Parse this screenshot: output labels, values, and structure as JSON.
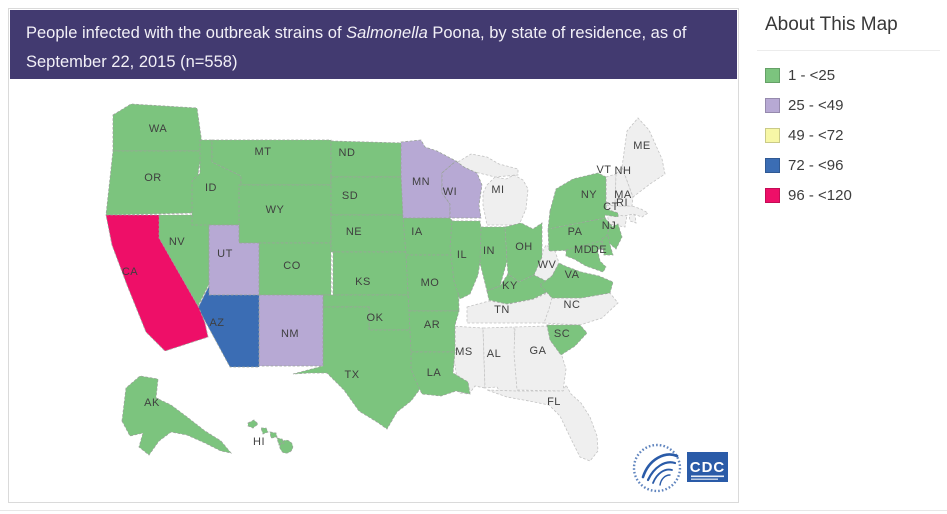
{
  "header": {
    "title_prefix": "People infected with the outbreak strains of ",
    "title_italic": "Salmonella",
    "title_suffix": " Poona, by state of residence, as of September 22, 2015 (n=558)",
    "background": "#423a70"
  },
  "about_panel": {
    "heading": "About This Map"
  },
  "legend": {
    "items": [
      {
        "key": "cat1",
        "label": "1 - <25",
        "color": "#7cc47e"
      },
      {
        "key": "cat2",
        "label": "25 - <49",
        "color": "#b7a9d4"
      },
      {
        "key": "cat3",
        "label": "49 - <72",
        "color": "#f7f7a6"
      },
      {
        "key": "cat4",
        "label": "72 - <96",
        "color": "#3b6db4"
      },
      {
        "key": "cat5",
        "label": "96 - <120",
        "color": "#ee0f68"
      }
    ],
    "no_case_color": "#efefef"
  },
  "map": {
    "states": [
      {
        "id": "WA",
        "label": "WA",
        "cat": "cat1"
      },
      {
        "id": "OR",
        "label": "OR",
        "cat": "cat1"
      },
      {
        "id": "CA",
        "label": "CA",
        "cat": "cat5"
      },
      {
        "id": "NV",
        "label": "NV",
        "cat": "cat1"
      },
      {
        "id": "ID",
        "label": "ID",
        "cat": "cat1"
      },
      {
        "id": "MT",
        "label": "MT",
        "cat": "cat1"
      },
      {
        "id": "WY",
        "label": "WY",
        "cat": "cat1"
      },
      {
        "id": "UT",
        "label": "UT",
        "cat": "cat2"
      },
      {
        "id": "CO",
        "label": "CO",
        "cat": "cat1"
      },
      {
        "id": "AZ",
        "label": "AZ",
        "cat": "cat4"
      },
      {
        "id": "NM",
        "label": "NM",
        "cat": "cat2"
      },
      {
        "id": "ND",
        "label": "ND",
        "cat": "cat1"
      },
      {
        "id": "SD",
        "label": "SD",
        "cat": "cat1"
      },
      {
        "id": "NE",
        "label": "NE",
        "cat": "cat1"
      },
      {
        "id": "KS",
        "label": "KS",
        "cat": "cat1"
      },
      {
        "id": "OK",
        "label": "OK",
        "cat": "cat1"
      },
      {
        "id": "TX",
        "label": "TX",
        "cat": "cat1"
      },
      {
        "id": "MN",
        "label": "MN",
        "cat": "cat2"
      },
      {
        "id": "IA",
        "label": "IA",
        "cat": "cat1"
      },
      {
        "id": "MO",
        "label": "MO",
        "cat": "cat1"
      },
      {
        "id": "AR",
        "label": "AR",
        "cat": "cat1"
      },
      {
        "id": "LA",
        "label": "LA",
        "cat": "cat1"
      },
      {
        "id": "WI",
        "label": "WI",
        "cat": "cat2"
      },
      {
        "id": "IL",
        "label": "IL",
        "cat": "cat1"
      },
      {
        "id": "MS",
        "label": "MS",
        "cat": "none"
      },
      {
        "id": "MI",
        "label": "MI",
        "cat": "none"
      },
      {
        "id": "IN",
        "label": "IN",
        "cat": "cat1"
      },
      {
        "id": "OH",
        "label": "OH",
        "cat": "cat1"
      },
      {
        "id": "KY",
        "label": "KY",
        "cat": "cat1"
      },
      {
        "id": "TN",
        "label": "TN",
        "cat": "none"
      },
      {
        "id": "AL",
        "label": "AL",
        "cat": "none"
      },
      {
        "id": "GA",
        "label": "GA",
        "cat": "none"
      },
      {
        "id": "FL",
        "label": "FL",
        "cat": "none"
      },
      {
        "id": "SC",
        "label": "SC",
        "cat": "cat1"
      },
      {
        "id": "NC",
        "label": "NC",
        "cat": "none"
      },
      {
        "id": "VA",
        "label": "VA",
        "cat": "cat1"
      },
      {
        "id": "WV",
        "label": "WV",
        "cat": "none"
      },
      {
        "id": "PA",
        "label": "PA",
        "cat": "cat1"
      },
      {
        "id": "NY",
        "label": "NY",
        "cat": "cat1"
      },
      {
        "id": "NJ",
        "label": "NJ",
        "cat": "cat1"
      },
      {
        "id": "DE",
        "label": "DE",
        "cat": "cat1"
      },
      {
        "id": "MD",
        "label": "MD",
        "cat": "cat1"
      },
      {
        "id": "CT",
        "label": "CT",
        "cat": "none"
      },
      {
        "id": "RI",
        "label": "RI",
        "cat": "none"
      },
      {
        "id": "MA",
        "label": "MA",
        "cat": "none"
      },
      {
        "id": "VT",
        "label": "VT",
        "cat": "none"
      },
      {
        "id": "NH",
        "label": "NH",
        "cat": "none"
      },
      {
        "id": "ME",
        "label": "ME",
        "cat": "none"
      },
      {
        "id": "AK",
        "label": "AK",
        "cat": "cat1"
      },
      {
        "id": "HI",
        "label": "HI",
        "cat": "cat1"
      }
    ],
    "logo": {
      "cdc_text": "CDC"
    }
  }
}
